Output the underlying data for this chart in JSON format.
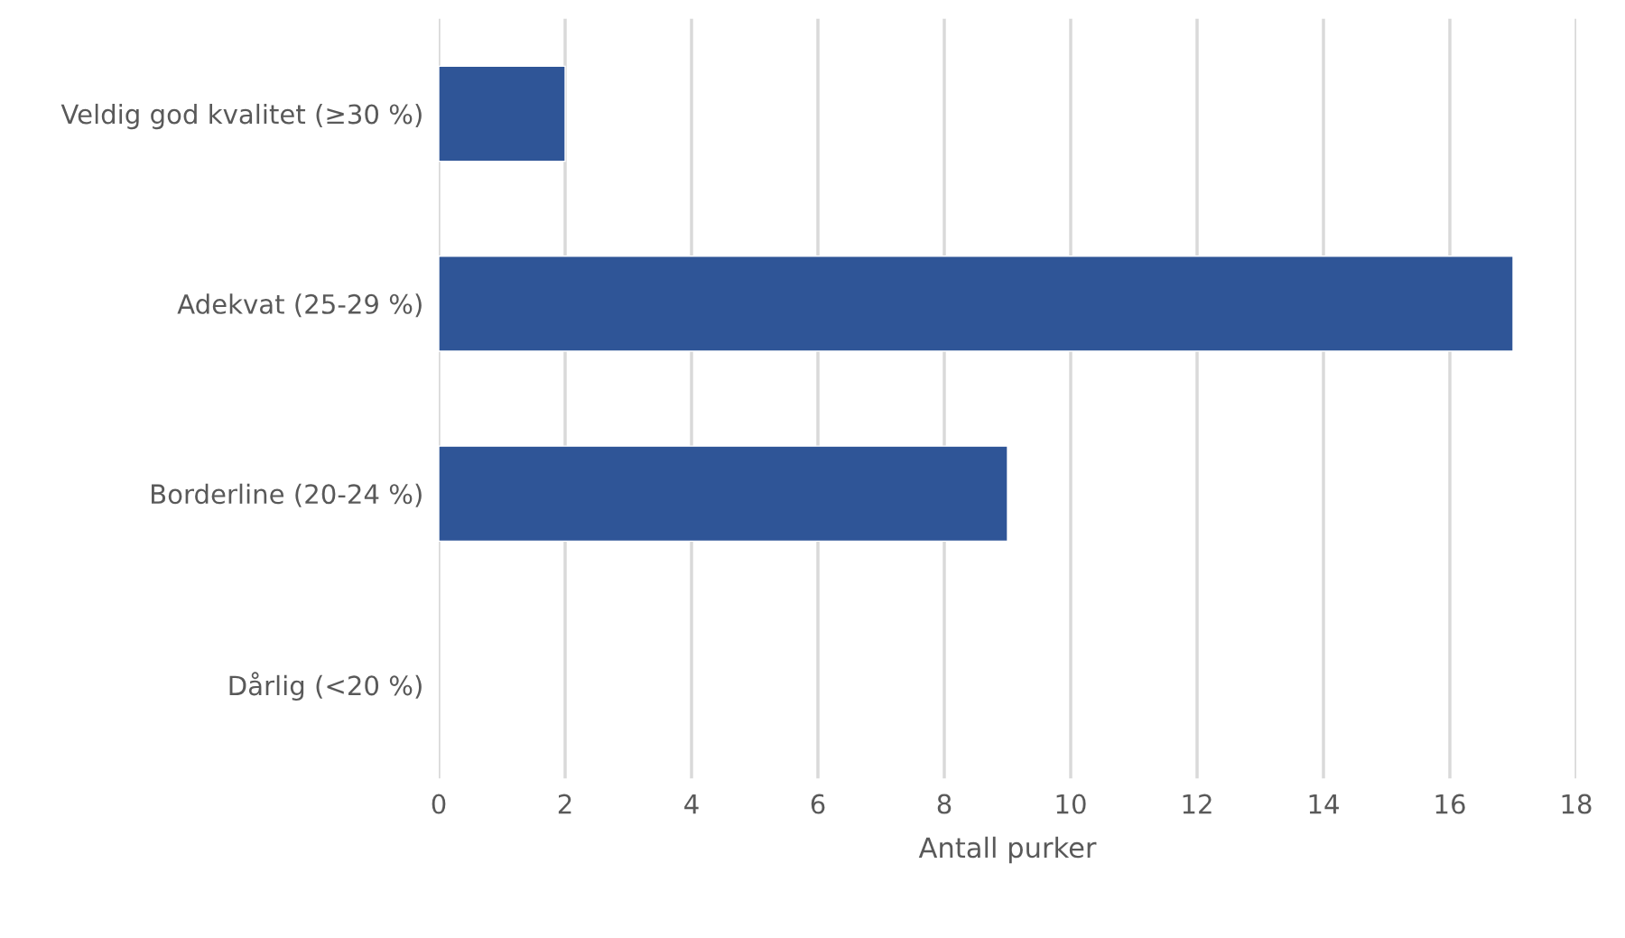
{
  "chart_data": {
    "type": "bar",
    "orientation": "horizontal",
    "xlabel": "Antall purker",
    "categories": [
      "Veldig god kvalitet (≥30 %)",
      "Adekvat (25-29 %)",
      "Borderline (20-24 %)",
      "Dårlig (<20 %)"
    ],
    "values": [
      2,
      17,
      9,
      0
    ],
    "color": "#2f5597",
    "xlim": [
      0,
      18
    ],
    "xticks": [
      0,
      2,
      4,
      6,
      8,
      10,
      12,
      14,
      16,
      18
    ],
    "grid": "x",
    "legend": false
  }
}
